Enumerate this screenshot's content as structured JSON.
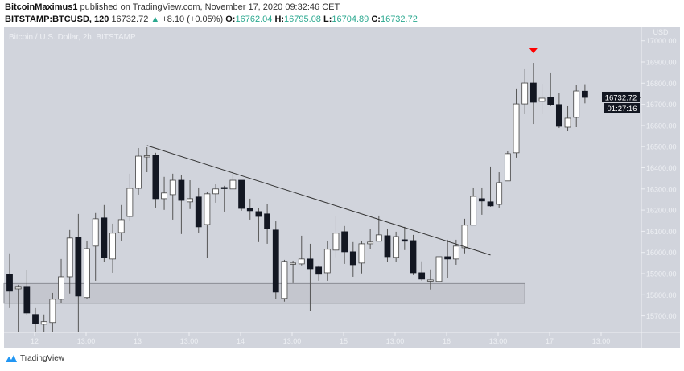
{
  "header": {
    "author": "BitcoinMaximus1",
    "published": "published on TradingView.com, November 17, 2020 09:32:46 CET",
    "symbol": "BITSTAMP:BTCUSD, 120",
    "last": "16732.72",
    "change": "+8.10 (+0.05%)",
    "o_label": "O:",
    "o": "16762.04",
    "h_label": "H:",
    "h": "16795.08",
    "l_label": "L:",
    "l": "16704.89",
    "c_label": "C:",
    "c": "16732.72"
  },
  "footer": {
    "brand": "TradingView"
  },
  "colors": {
    "background": "#d1d4dc",
    "up_body": "#ffffff",
    "down_body": "#131722",
    "wick": "#555555",
    "marker": "#ff0000",
    "positive_text": "#2aa88f"
  },
  "chart_data": {
    "type": "candlestick",
    "title": "Bitcoin / U.S. Dollar, 2h, BITSTAMP",
    "currency_label": "USD",
    "ylim": [
      15650,
      17010
    ],
    "y_ticks": [
      "17000.00",
      "16900.00",
      "16800.00",
      "16700.00",
      "16600.00",
      "16500.00",
      "16400.00",
      "16300.00",
      "16200.00",
      "16100.00",
      "16000.00",
      "15900.00",
      "15800.00",
      "15700.00"
    ],
    "x_ticks": [
      "12",
      "13:00",
      "13",
      "13:00",
      "14",
      "13:00",
      "15",
      "13:00",
      "16",
      "13:00",
      "17",
      "13:00"
    ],
    "grid": false,
    "candles_ohlc": [
      [
        "11-11 18:00",
        15897,
        15996,
        15737,
        15817
      ],
      [
        "11-11 20:00",
        15828,
        15847,
        15623,
        15836
      ],
      [
        "11-11 22:00",
        15836,
        15916,
        15703,
        15714
      ],
      [
        "11-12 00:00",
        15707,
        15737,
        15623,
        15665
      ],
      [
        "11-12 02:00",
        15661,
        15707,
        15623,
        15673
      ],
      [
        "11-12 04:00",
        15669,
        15809,
        15623,
        15779
      ],
      [
        "11-12 06:00",
        15779,
        15969,
        15760,
        15885
      ],
      [
        "11-12 08:00",
        15885,
        16106,
        15806,
        16068
      ],
      [
        "11-12 10:00",
        16072,
        16182,
        15623,
        15794
      ],
      [
        "11-12 12:00",
        15787,
        16056,
        15779,
        16018
      ],
      [
        "11-12 14:00",
        16030,
        16186,
        15866,
        16159
      ],
      [
        "11-12 16:00",
        16163,
        16224,
        15954,
        15977
      ],
      [
        "11-12 18:00",
        15969,
        16136,
        15904,
        16091
      ],
      [
        "11-12 20:00",
        16094,
        16224,
        16056,
        16155
      ],
      [
        "11-12 22:00",
        16170,
        16372,
        16151,
        16303
      ],
      [
        "11-13 00:00",
        16303,
        16493,
        16273,
        16455
      ],
      [
        "11-13 02:00",
        16455,
        16497,
        16379,
        16457
      ],
      [
        "11-13 04:00",
        16459,
        16471,
        16212,
        16254
      ],
      [
        "11-13 06:00",
        16254,
        16357,
        16201,
        16281
      ],
      [
        "11-13 08:00",
        16273,
        16372,
        16155,
        16341
      ],
      [
        "11-13 10:00",
        16341,
        16364,
        16087,
        16246
      ],
      [
        "11-13 12:00",
        16239,
        16341,
        16205,
        16254
      ],
      [
        "11-13 14:00",
        16262,
        16307,
        16094,
        16121
      ],
      [
        "11-13 16:00",
        16132,
        16284,
        15973,
        16277
      ],
      [
        "11-13 18:00",
        16277,
        16322,
        16235,
        16300
      ],
      [
        "11-13 20:00",
        16307,
        16315,
        16193,
        16303
      ],
      [
        "11-13 22:00",
        16300,
        16383,
        16300,
        16341
      ],
      [
        "11-14 00:00",
        16341,
        16341,
        16197,
        16208
      ],
      [
        "11-14 02:00",
        16208,
        16254,
        16155,
        16197
      ],
      [
        "11-14 04:00",
        16193,
        16208,
        16049,
        16170
      ],
      [
        "11-14 06:00",
        16182,
        16227,
        16041,
        16113
      ],
      [
        "11-14 08:00",
        16106,
        16147,
        15779,
        15813
      ],
      [
        "11-14 10:00",
        15783,
        15965,
        15768,
        15958
      ],
      [
        "11-14 12:00",
        15946,
        15961,
        15855,
        15950
      ],
      [
        "11-14 14:00",
        15946,
        16079,
        15939,
        15969
      ],
      [
        "11-14 16:00",
        15969,
        16041,
        15722,
        15923
      ],
      [
        "11-14 18:00",
        15931,
        15939,
        15866,
        15897
      ],
      [
        "11-14 20:00",
        15904,
        16056,
        15866,
        16015
      ],
      [
        "11-14 22:00",
        16011,
        16170,
        15977,
        16091
      ],
      [
        "11-15 00:00",
        16098,
        16125,
        15946,
        16003
      ],
      [
        "11-15 02:00",
        16003,
        16049,
        15885,
        15942
      ],
      [
        "11-15 04:00",
        15950,
        16053,
        15901,
        16041
      ],
      [
        "11-15 06:00",
        16041,
        16113,
        16015,
        16049
      ],
      [
        "11-15 08:00",
        16053,
        16174,
        16053,
        16083
      ],
      [
        "11-15 10:00",
        16079,
        16113,
        15954,
        15980
      ],
      [
        "11-15 12:00",
        15977,
        16098,
        15954,
        16075
      ],
      [
        "11-15 14:00",
        16060,
        16121,
        16011,
        16053
      ],
      [
        "11-15 16:00",
        16056,
        16083,
        15893,
        15904
      ],
      [
        "11-15 18:00",
        15904,
        15958,
        15866,
        15874
      ],
      [
        "11-15 20:00",
        15866,
        15920,
        15825,
        15870
      ],
      [
        "11-15 22:00",
        15863,
        16030,
        15794,
        15980
      ],
      [
        "11-16 00:00",
        15980,
        16060,
        15878,
        15969
      ],
      [
        "11-16 02:00",
        15969,
        16060,
        15942,
        16030
      ],
      [
        "11-16 04:00",
        16022,
        16159,
        15996,
        16129
      ],
      [
        "11-16 06:00",
        16129,
        16307,
        16129,
        16265
      ],
      [
        "11-16 08:00",
        16254,
        16307,
        16178,
        16243
      ],
      [
        "11-16 10:00",
        16239,
        16406,
        16216,
        16220
      ],
      [
        "11-16 12:00",
        16227,
        16379,
        16212,
        16330
      ],
      [
        "11-16 14:00",
        16338,
        16478,
        16338,
        16467
      ],
      [
        "11-16 16:00",
        16471,
        16775,
        16448,
        16702
      ],
      [
        "11-16 18:00",
        16702,
        16866,
        16653,
        16801
      ],
      [
        "11-16 20:00",
        16801,
        16896,
        16607,
        16710
      ],
      [
        "11-16 22:00",
        16714,
        16797,
        16653,
        16729
      ],
      [
        "11-17 00:00",
        16733,
        16847,
        16691,
        16699
      ],
      [
        "11-17 02:00",
        16699,
        16752,
        16588,
        16596
      ],
      [
        "11-17 04:00",
        16592,
        16691,
        16573,
        16634
      ],
      [
        "11-17 06:00",
        16638,
        16790,
        16592,
        16763
      ],
      [
        "11-17 08:00",
        16762.04,
        16795.08,
        16704.89,
        16732.72
      ]
    ],
    "trendline": {
      "from": [
        "11-13 02:00",
        16505
      ],
      "to": [
        "11-16 10:00",
        15988
      ]
    },
    "support_zone": {
      "price_top": 15853,
      "price_bottom": 15760,
      "until": "11-16 18:00"
    },
    "marker": {
      "type": "down-triangle",
      "candle": "11-16 20:00"
    },
    "last_price_label": "16732.72",
    "countdown_label": "01:27:16"
  }
}
